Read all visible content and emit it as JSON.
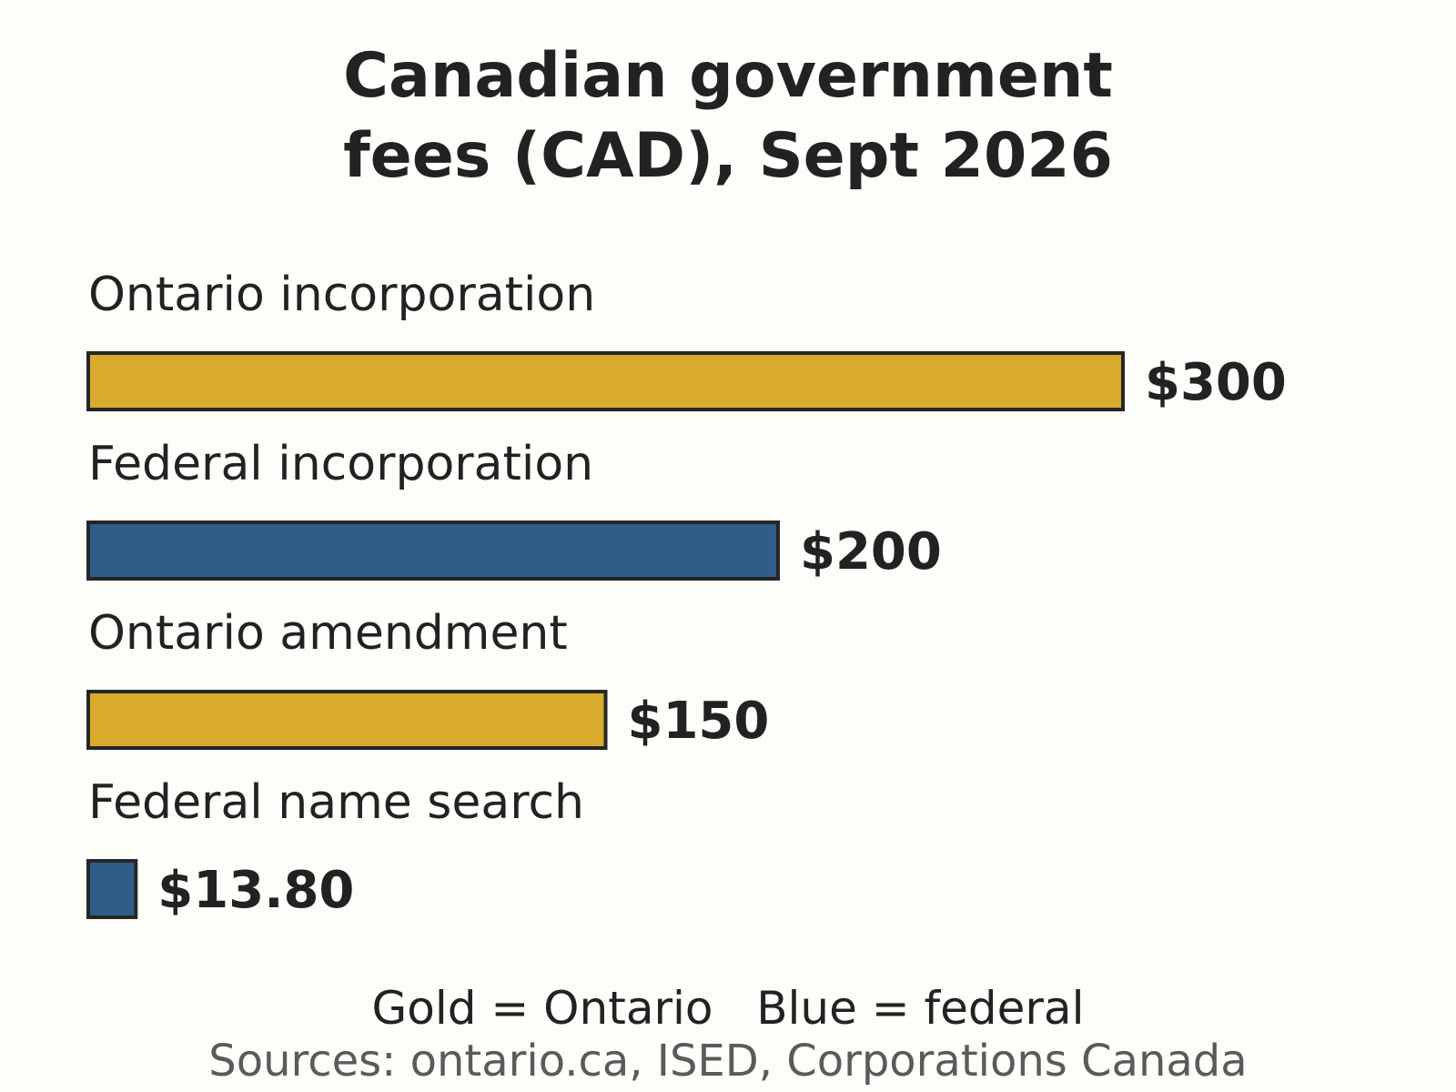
{
  "chart_data": {
    "type": "bar",
    "orientation": "horizontal",
    "title_lines": [
      "Canadian government",
      "fees (CAD), Sept 2026"
    ],
    "categories": [
      "Ontario incorporation",
      "Federal incorporation",
      "Ontario amendment",
      "Federal name search"
    ],
    "values": [
      300,
      200,
      150,
      13.8
    ],
    "value_labels": [
      "$300",
      "$200",
      "$150",
      "$13.80"
    ],
    "jurisdiction": [
      "Ontario",
      "federal",
      "Ontario",
      "federal"
    ],
    "colors": {
      "Ontario": "#d9ab2c",
      "federal": "#2f5d8a",
      "bar_outline": "#262626"
    },
    "xlim": [
      0,
      300
    ],
    "grid": false,
    "axes_visible": false,
    "legend_text": [
      "Gold = Ontario",
      "Blue = federal"
    ],
    "source_text": "Sources: ontario.ca, ISED, Corporations Canada"
  }
}
